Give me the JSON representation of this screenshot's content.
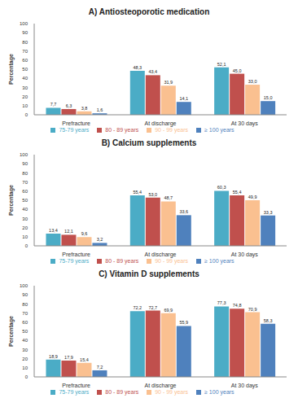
{
  "chart_data": [
    {
      "type": "bar",
      "title": "A) Antiosteoporotic medication",
      "y_label": "Percentage",
      "categories": [
        "Prefracture",
        "At discharge",
        "At 30 days"
      ],
      "ylim": [
        0,
        100
      ],
      "yticks": [
        0,
        10,
        20,
        30,
        40,
        50,
        60,
        70,
        80,
        90,
        100
      ],
      "grid": false,
      "legend": "bottom",
      "data_labels": true,
      "series": [
        {
          "name": "75-79 years",
          "color": "#4BACC6",
          "values": [
            7.7,
            48.3,
            52.1
          ],
          "value_labels": [
            "7,7",
            "48,3",
            "52,1"
          ]
        },
        {
          "name": "80 - 89 years",
          "color": "#C0504D",
          "values": [
            6.3,
            43.4,
            45.0
          ],
          "value_labels": [
            "6,3",
            "43,4",
            "45,0"
          ]
        },
        {
          "name": "90 - 99 years",
          "color": "#FAC090",
          "values": [
            3.8,
            31.9,
            33.0
          ],
          "value_labels": [
            "3,8",
            "31,9",
            "33,0"
          ]
        },
        {
          "name": "≥ 100 years",
          "color": "#4F81BD",
          "values": [
            1.6,
            14.1,
            15.0
          ],
          "value_labels": [
            "1,6",
            "14,1",
            "15,0"
          ]
        }
      ]
    },
    {
      "type": "bar",
      "title": "B) Calcium supplements",
      "y_label": "Percentage",
      "categories": [
        "Prefracture",
        "At discharge",
        "At 30 days"
      ],
      "ylim": [
        0,
        100
      ],
      "yticks": [
        0,
        10,
        20,
        30,
        40,
        50,
        60,
        70,
        80,
        90,
        100
      ],
      "grid": false,
      "legend": "bottom",
      "data_labels": true,
      "series": [
        {
          "name": "75-79 years",
          "color": "#4BACC6",
          "values": [
            13.4,
            55.4,
            60.3
          ],
          "value_labels": [
            "13,4",
            "55,4",
            "60,3"
          ]
        },
        {
          "name": "80 - 89 years",
          "color": "#C0504D",
          "values": [
            12.1,
            53.0,
            55.4
          ],
          "value_labels": [
            "12,1",
            "53,0",
            "55,4"
          ]
        },
        {
          "name": "90 - 99 years",
          "color": "#FAC090",
          "values": [
            9.6,
            48.7,
            49.9
          ],
          "value_labels": [
            "9,6",
            "48,7",
            "49,9"
          ]
        },
        {
          "name": "≥ 100 years",
          "color": "#4F81BD",
          "values": [
            3.2,
            33.6,
            33.3
          ],
          "value_labels": [
            "3,2",
            "33,6",
            "33,3"
          ]
        }
      ]
    },
    {
      "type": "bar",
      "title": "C) Vitamin D supplements",
      "y_label": "Percentage",
      "categories": [
        "Prefracture",
        "At discharge",
        "At 30 days"
      ],
      "ylim": [
        0,
        100
      ],
      "yticks": [
        0,
        10,
        20,
        30,
        40,
        50,
        60,
        70,
        80,
        90,
        100
      ],
      "grid": false,
      "legend": "bottom",
      "data_labels": true,
      "series": [
        {
          "name": "75-79 years",
          "color": "#4BACC6",
          "values": [
            18.9,
            72.2,
            77.3
          ],
          "value_labels": [
            "18,9",
            "72,2",
            "77,3"
          ]
        },
        {
          "name": "80 - 89 years",
          "color": "#C0504D",
          "values": [
            17.9,
            72.7,
            74.8
          ],
          "value_labels": [
            "17,9",
            "72,7",
            "74,8"
          ]
        },
        {
          "name": "90 - 99 years",
          "color": "#FAC090",
          "values": [
            15.4,
            69.9,
            70.9
          ],
          "value_labels": [
            "15,4",
            "69,9",
            "70,9"
          ]
        },
        {
          "name": "≥ 100 years",
          "color": "#4F81BD",
          "values": [
            7.2,
            55.9,
            58.3
          ],
          "value_labels": [
            "7,2",
            "55,9",
            "58,3"
          ]
        }
      ]
    }
  ]
}
